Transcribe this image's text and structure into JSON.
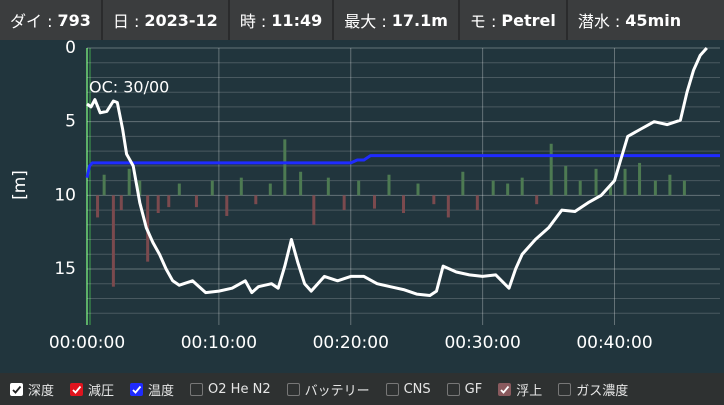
{
  "header": [
    {
      "label": "ダイ :",
      "value": "793"
    },
    {
      "label": "日 :",
      "value": "2023-12"
    },
    {
      "label": "時 :",
      "value": "11:49"
    },
    {
      "label": "最大 :",
      "value": "17.1m"
    },
    {
      "label": "モ :",
      "value": "Petrel"
    },
    {
      "label": "潜水 :",
      "value": "45min"
    }
  ],
  "chart_data": {
    "type": "line",
    "ylabel": "[m]",
    "annotation": "OC: 30/00",
    "y_inverted": true,
    "xlim": [
      0,
      48
    ],
    "ylim": [
      0,
      18.8
    ],
    "xticks": [
      {
        "value": 0,
        "label": "00:00:00"
      },
      {
        "value": 10,
        "label": "00:10:00"
      },
      {
        "value": 20,
        "label": "00:20:00"
      },
      {
        "value": 30,
        "label": "00:30:00"
      },
      {
        "value": 40,
        "label": "00:40:00"
      }
    ],
    "yticks": [
      0,
      5,
      10,
      15
    ],
    "y_minor_ticks": [
      1,
      2,
      3,
      4,
      6,
      7,
      8,
      9,
      11,
      12,
      13,
      14,
      16,
      17,
      18
    ],
    "grid": true,
    "series": [
      {
        "name": "深度",
        "color": "#ffffff",
        "x": [
          0,
          0.3,
          0.6,
          1,
          1.5,
          2,
          2.3,
          2.7,
          3,
          3.5,
          4,
          4.5,
          5,
          5.5,
          6,
          6.5,
          7,
          8,
          8.5,
          9,
          10,
          11,
          12,
          12.5,
          13,
          14,
          14.5,
          15,
          15.5,
          16,
          16.5,
          17,
          17.5,
          18,
          19,
          20,
          21,
          22,
          23,
          24,
          25,
          26,
          26.5,
          27,
          28,
          29,
          30,
          31,
          32,
          32.5,
          33,
          34,
          35,
          36,
          37,
          38,
          39,
          40,
          40.5,
          41,
          42,
          43,
          44,
          45,
          45.5,
          46,
          46.5,
          47
        ],
        "values": [
          3.8,
          4.0,
          3.5,
          4.4,
          4.3,
          3.6,
          3.7,
          5.5,
          7.2,
          8.0,
          10.5,
          12.2,
          13.2,
          14.0,
          15.0,
          15.8,
          16.1,
          15.8,
          16.2,
          16.6,
          16.5,
          16.3,
          15.8,
          16.6,
          16.2,
          16.0,
          16.3,
          14.8,
          13.0,
          14.6,
          16.0,
          16.5,
          16.0,
          15.5,
          15.8,
          15.5,
          15.5,
          16.0,
          16.2,
          16.4,
          16.7,
          16.8,
          16.5,
          14.8,
          15.2,
          15.4,
          15.5,
          15.4,
          16.3,
          15.0,
          14.0,
          13.0,
          12.2,
          11.0,
          11.1,
          10.5,
          10.0,
          9.0,
          7.5,
          6.0,
          5.5,
          5.0,
          5.2,
          4.9,
          3.0,
          1.5,
          0.5,
          0
        ]
      },
      {
        "name": "温度",
        "color": "#1f2bff",
        "x": [
          0,
          0.2,
          0.4,
          20,
          20.5,
          21,
          21.5,
          48
        ],
        "values": [
          8.8,
          8.0,
          7.8,
          7.8,
          7.6,
          7.6,
          7.3,
          7.3
        ]
      }
    ],
    "bars": {
      "bar_base": 10,
      "up_color": "#4d7a52",
      "down_color": "#7b4a4e",
      "x": [
        0.8,
        1.3,
        2.0,
        2.6,
        3.2,
        4.0,
        4.6,
        5.4,
        6.2,
        7.0,
        8.3,
        9.5,
        10.6,
        11.7,
        12.8,
        13.9,
        15.0,
        16.2,
        17.2,
        18.3,
        19.5,
        20.6,
        21.8,
        22.9,
        24.0,
        25.1,
        26.3,
        27.4,
        28.5,
        29.6,
        30.8,
        31.9,
        33.0,
        34.1,
        35.2,
        36.3,
        37.4,
        38.6,
        39.7,
        40.8,
        41.9,
        43.1,
        44.2,
        45.3
      ],
      "values": [
        11.5,
        8.6,
        16.2,
        11.0,
        8.2,
        9.0,
        14.5,
        11.2,
        10.8,
        9.2,
        10.8,
        9.0,
        11.4,
        8.8,
        10.6,
        9.2,
        6.2,
        8.4,
        12.0,
        8.8,
        11.0,
        9.0,
        10.9,
        8.6,
        11.2,
        9.2,
        10.6,
        11.5,
        8.4,
        11.0,
        9.0,
        9.2,
        8.8,
        10.6,
        6.5,
        8.0,
        9.0,
        8.2,
        9.4,
        8.2,
        7.8,
        9.0,
        8.6,
        9.0
      ]
    }
  },
  "legend": [
    {
      "label": "深度",
      "checked": true,
      "color": "#ffffff"
    },
    {
      "label": "減圧",
      "checked": true,
      "color": "#e0141e"
    },
    {
      "label": "温度",
      "checked": true,
      "color": "#1f2bff"
    },
    {
      "label": "O2 He N2",
      "checked": false,
      "color": "#2e3131"
    },
    {
      "label": "バッテリー",
      "checked": false,
      "color": "#2e3131"
    },
    {
      "label": "CNS",
      "checked": false,
      "color": "#2e3131"
    },
    {
      "label": "GF",
      "checked": false,
      "color": "#2e3131"
    },
    {
      "label": "浮上",
      "checked": true,
      "color": "#8a5a5e"
    },
    {
      "label": "ガス濃度",
      "checked": false,
      "color": "#2e3131"
    }
  ]
}
